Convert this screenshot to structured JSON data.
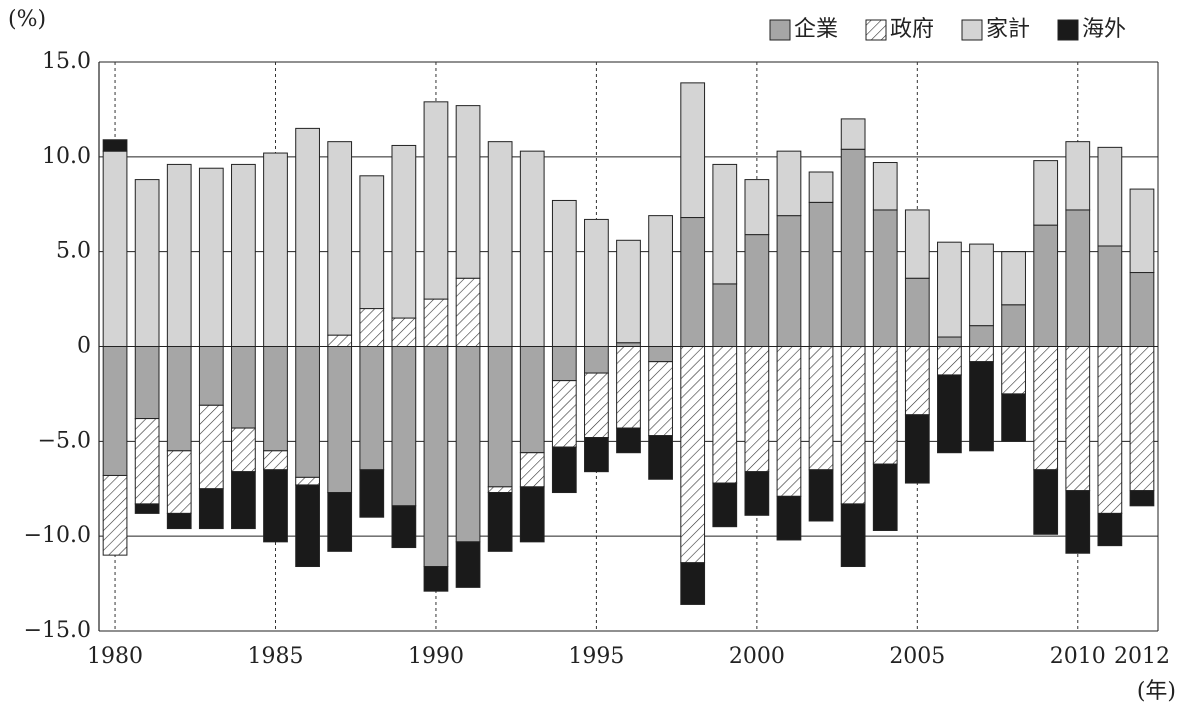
{
  "chart_data": {
    "type": "stacked_bar",
    "y_unit_label": "(%)",
    "x_unit_label": "(年)",
    "categories": [
      "1980",
      null,
      null,
      null,
      null,
      "1985",
      null,
      null,
      null,
      null,
      "1990",
      null,
      null,
      null,
      null,
      "1995",
      null,
      null,
      null,
      null,
      "2000",
      null,
      null,
      null,
      null,
      "2005",
      null,
      null,
      null,
      null,
      "2010",
      null,
      "2012"
    ],
    "series": [
      {
        "name": "企業",
        "color": "#a6a6a6",
        "values": [
          -6.8,
          -3.8,
          -5.5,
          -3.1,
          -4.3,
          -5.5,
          -6.9,
          -7.7,
          -6.5,
          -8.4,
          -11.6,
          -10.3,
          -7.4,
          -5.6,
          -1.8,
          -1.4,
          0.2,
          -0.8,
          6.8,
          3.3,
          5.9,
          6.9,
          7.6,
          10.4,
          7.2,
          3.6,
          0.5,
          1.1,
          2.2,
          6.4,
          7.2,
          5.3,
          3.9
        ]
      },
      {
        "name": "政府",
        "color": "#ffffff",
        "hatch": true,
        "values": [
          -4.2,
          -4.5,
          -3.3,
          -4.4,
          -2.3,
          -1.0,
          -0.4,
          0.6,
          2.0,
          1.5,
          2.5,
          3.6,
          -0.3,
          -1.8,
          -3.5,
          -3.4,
          -4.3,
          -3.9,
          -11.4,
          -7.2,
          -6.6,
          -7.9,
          -6.5,
          -8.3,
          -6.2,
          -3.6,
          -1.5,
          -0.8,
          -2.5,
          -6.5,
          -7.6,
          -8.8,
          -7.6
        ]
      },
      {
        "name": "家計",
        "color": "#d4d4d4",
        "values": [
          10.3,
          8.8,
          9.6,
          9.4,
          9.6,
          10.2,
          11.5,
          10.2,
          7.0,
          9.1,
          10.4,
          9.1,
          10.8,
          10.3,
          7.7,
          6.7,
          5.4,
          6.9,
          7.1,
          6.3,
          2.9,
          3.4,
          1.6,
          1.6,
          2.5,
          3.6,
          5.0,
          4.3,
          2.8,
          3.4,
          3.6,
          5.2,
          4.4
        ]
      },
      {
        "name": "海外",
        "color": "#1a1a1a",
        "values": [
          0.6,
          -0.5,
          -0.8,
          -2.1,
          -3.0,
          -3.8,
          -4.3,
          -3.1,
          -2.5,
          -2.2,
          -1.3,
          -2.4,
          -3.1,
          -2.9,
          -2.4,
          -1.8,
          -1.3,
          -2.3,
          -2.2,
          -2.3,
          -2.3,
          -2.3,
          -2.7,
          -3.3,
          -3.5,
          -3.6,
          -4.1,
          -4.7,
          -2.5,
          -3.4,
          -3.3,
          -1.7,
          -0.8
        ]
      }
    ],
    "ylim": [
      -15,
      15
    ],
    "yticks": [
      {
        "value": -15,
        "label": "−15.0"
      },
      {
        "value": -10,
        "label": "−10.0"
      },
      {
        "value": -5,
        "label": "−5.0"
      },
      0,
      {
        "value": 5,
        "label": "5.0"
      },
      {
        "value": 10,
        "label": "10.0"
      },
      {
        "value": 15,
        "label": "15.0"
      }
    ],
    "grid": true,
    "legend": "top-right"
  }
}
